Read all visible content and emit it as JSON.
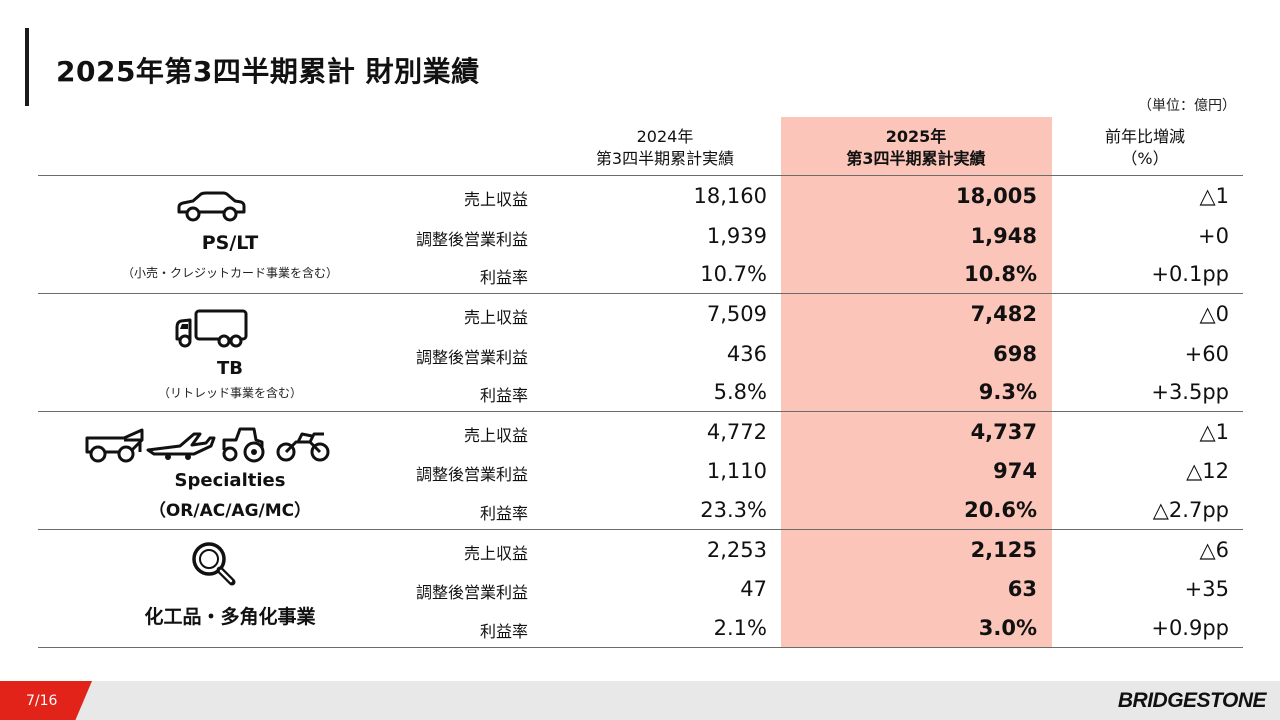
{
  "title": "2025年第3四半期累計 財別業績",
  "unit_note": "（単位：億円）",
  "columns": {
    "prev_line1": "2024年",
    "prev_line2": "第3四半期累計実績",
    "curr_line1": "2025年",
    "curr_line2": "第3四半期累計実績",
    "diff_line1": "前年比増減",
    "diff_line2": "（%）"
  },
  "highlight_color": "#fbc5b9",
  "metrics": {
    "revenue": "売上収益",
    "adj_op": "調整後営業利益",
    "margin": "利益率"
  },
  "segments": [
    {
      "name": "PS/LT",
      "sub": "（小売・クレジットカード事業を含む）",
      "icon": "car-icon",
      "rows": [
        {
          "prev": "18,160",
          "curr": "18,005",
          "diff": "△1"
        },
        {
          "prev": "1,939",
          "curr": "1,948",
          "diff": "+0"
        },
        {
          "prev": "10.7%",
          "curr": "10.8%",
          "diff": "+0.1pp"
        }
      ]
    },
    {
      "name": "TB",
      "sub": "（リトレッド事業を含む）",
      "icon": "truck-icon",
      "rows": [
        {
          "prev": "7,509",
          "curr": "7,482",
          "diff": "△0"
        },
        {
          "prev": "436",
          "curr": "698",
          "diff": "+60"
        },
        {
          "prev": "5.8%",
          "curr": "9.3%",
          "diff": "+3.5pp"
        }
      ]
    },
    {
      "name": "Specialties",
      "sub": "（OR/AC/AG/MC）",
      "icon": "specialty-vehicles-icon",
      "rows": [
        {
          "prev": "4,772",
          "curr": "4,737",
          "diff": "△1"
        },
        {
          "prev": "1,110",
          "curr": "974",
          "diff": "△12"
        },
        {
          "prev": "23.3%",
          "curr": "20.6%",
          "diff": "△2.7pp"
        }
      ]
    },
    {
      "name": "化工品・多角化事業",
      "icon": "magnifier-icon",
      "rows": [
        {
          "prev": "2,253",
          "curr": "2,125",
          "diff": "△6"
        },
        {
          "prev": "47",
          "curr": "63",
          "diff": "+35"
        },
        {
          "prev": "2.1%",
          "curr": "3.0%",
          "diff": "+0.9pp"
        }
      ]
    }
  ],
  "footer": {
    "page": "7/16",
    "brand": "BRIDGESTONE",
    "accent": "#e2231a"
  }
}
